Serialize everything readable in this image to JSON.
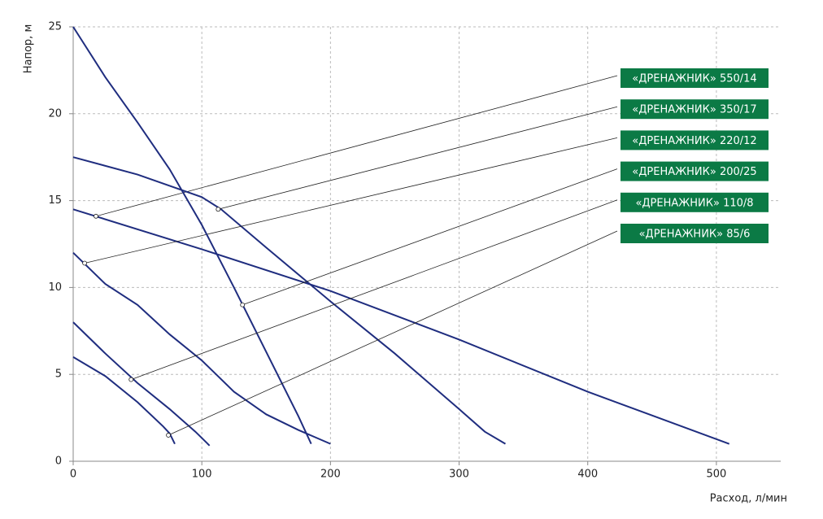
{
  "chart_data": {
    "type": "line",
    "xlabel": "Расход, л/мин",
    "ylabel": "Напор, м",
    "xlim": [
      0,
      550
    ],
    "ylim": [
      0,
      25
    ],
    "xticks": [
      0,
      100,
      200,
      300,
      400,
      500
    ],
    "yticks": [
      0,
      5,
      10,
      15,
      20,
      25
    ],
    "grid": true,
    "label_color": "#0b7a45",
    "series": [
      {
        "name": "«ДРЕНАЖНИК» 550/14",
        "color": "#1f2d7f",
        "x": [
          0,
          100,
          200,
          300,
          400,
          510
        ],
        "values": [
          14.5,
          12.2,
          9.8,
          7.0,
          4.0,
          1.0
        ],
        "point": [
          17.7,
          14.1
        ]
      },
      {
        "name": "«ДРЕНАЖНИК» 350/17",
        "color": "#1f2d7f",
        "x": [
          0,
          50,
          100,
          115,
          150,
          200,
          250,
          300,
          320,
          336
        ],
        "values": [
          17.5,
          16.5,
          15.2,
          14.5,
          12.3,
          9.2,
          6.2,
          3.0,
          1.7,
          1.0
        ],
        "point": [
          112.7,
          14.5
        ]
      },
      {
        "name": "«ДРЕНАЖНИК» 220/12",
        "color": "#1f2d7f",
        "x": [
          0,
          25,
          50,
          75,
          100,
          125,
          150,
          175,
          200
        ],
        "values": [
          12.0,
          10.2,
          9.0,
          7.3,
          5.8,
          4.0,
          2.7,
          1.8,
          1.0
        ],
        "point": [
          8.9,
          11.4
        ]
      },
      {
        "name": "«ДРЕНАЖНИК» 200/25",
        "color": "#1f2d7f",
        "x": [
          0,
          25,
          50,
          75,
          100,
          125,
          150,
          175,
          185
        ],
        "values": [
          25.0,
          22.1,
          19.5,
          16.8,
          13.6,
          10.0,
          6.3,
          2.6,
          1.0
        ],
        "point": [
          131.6,
          9.0
        ]
      },
      {
        "name": "«ДРЕНАЖНИК» 110/8",
        "color": "#1f2d7f",
        "x": [
          0,
          25,
          50,
          75,
          95,
          106
        ],
        "values": [
          8.0,
          6.2,
          4.5,
          3.0,
          1.7,
          0.9
        ],
        "point": [
          45,
          4.7
        ]
      },
      {
        "name": "«ДРЕНАЖНИК» 85/6",
        "color": "#1f2d7f",
        "x": [
          0,
          25,
          50,
          70,
          75,
          79
        ],
        "values": [
          6.0,
          4.9,
          3.4,
          2.0,
          1.6,
          1.0
        ],
        "point": [
          74,
          1.5
        ]
      }
    ]
  }
}
